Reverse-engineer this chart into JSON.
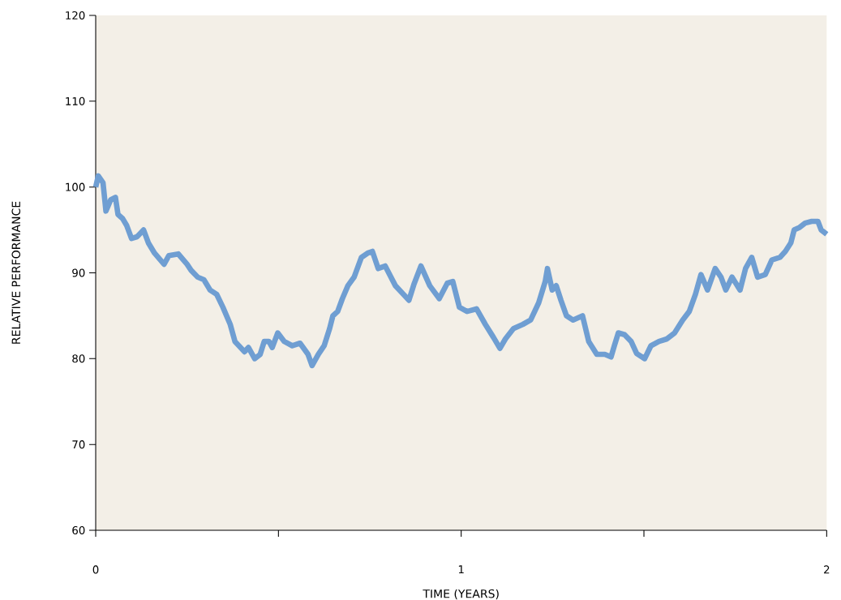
{
  "chart_data": {
    "type": "line",
    "xlabel": "TIME (YEARS)",
    "ylabel": "RELATIVE PERFORMANCE",
    "xlim": [
      0,
      2
    ],
    "ylim": [
      60,
      120
    ],
    "xticks": [
      0,
      {
        "value": 0.5,
        "label": null
      },
      1,
      {
        "value": 1.5,
        "label": null
      },
      2
    ],
    "yticks": [
      60,
      70,
      80,
      90,
      100,
      110,
      120
    ],
    "grid": false,
    "marker": "none",
    "line_style": "solid",
    "series": [
      {
        "color": "#6f9ed2",
        "x": [
          0,
          0.007,
          0.02,
          0.028,
          0.041,
          0.054,
          0.061,
          0.074,
          0.085,
          0.098,
          0.113,
          0.131,
          0.144,
          0.161,
          0.187,
          0.2,
          0.226,
          0.25,
          0.261,
          0.279,
          0.296,
          0.313,
          0.331,
          0.348,
          0.368,
          0.381,
          0.392,
          0.407,
          0.418,
          0.435,
          0.45,
          0.461,
          0.474,
          0.483,
          0.498,
          0.516,
          0.538,
          0.559,
          0.581,
          0.592,
          0.609,
          0.625,
          0.64,
          0.649,
          0.662,
          0.675,
          0.69,
          0.707,
          0.727,
          0.744,
          0.757,
          0.773,
          0.792,
          0.82,
          0.842,
          0.857,
          0.871,
          0.89,
          0.914,
          0.94,
          0.962,
          0.977,
          0.995,
          1.016,
          1.042,
          1.066,
          1.088,
          1.106,
          1.121,
          1.143,
          1.169,
          1.19,
          1.212,
          1.23,
          1.236,
          1.249,
          1.26,
          1.273,
          1.288,
          1.306,
          1.332,
          1.349,
          1.371,
          1.393,
          1.41,
          1.419,
          1.43,
          1.447,
          1.465,
          1.48,
          1.502,
          1.519,
          1.541,
          1.563,
          1.584,
          1.606,
          1.624,
          1.641,
          1.656,
          1.674,
          1.695,
          1.711,
          1.724,
          1.741,
          1.763,
          1.778,
          1.795,
          1.811,
          1.832,
          1.85,
          1.872,
          1.887,
          1.902,
          1.911,
          1.926,
          1.941,
          1.959,
          1.976,
          1.985,
          2
        ],
        "values": [
          100,
          101.3,
          100.5,
          97.2,
          98.5,
          98.8,
          96.8,
          96.3,
          95.5,
          94,
          94.2,
          95,
          93.5,
          92.3,
          91,
          92,
          92.2,
          91,
          90.3,
          89.5,
          89.2,
          88,
          87.5,
          86,
          84,
          82,
          81.5,
          80.8,
          81.3,
          80,
          80.5,
          82,
          82,
          81.3,
          83,
          82,
          81.5,
          81.8,
          80.5,
          79.2,
          80.5,
          81.5,
          83.5,
          85,
          85.5,
          87,
          88.5,
          89.5,
          91.8,
          92.3,
          92.5,
          90.5,
          90.8,
          88.5,
          87.5,
          86.8,
          88.7,
          90.8,
          88.5,
          87,
          88.8,
          89,
          86,
          85.5,
          85.8,
          84,
          82.5,
          81.2,
          82.3,
          83.5,
          84,
          84.5,
          86.5,
          89,
          90.5,
          88,
          88.5,
          86.8,
          85,
          84.5,
          85,
          82,
          80.5,
          80.5,
          80.2,
          81.5,
          83,
          82.8,
          82,
          80.6,
          80,
          81.5,
          82,
          82.3,
          83,
          84.5,
          85.5,
          87.5,
          89.8,
          88,
          90.5,
          89.5,
          88,
          89.5,
          88,
          90.5,
          91.8,
          89.5,
          89.8,
          91.5,
          91.8,
          92.5,
          93.5,
          95,
          95.3,
          95.8,
          96,
          96,
          95,
          94.5
        ]
      }
    ]
  }
}
